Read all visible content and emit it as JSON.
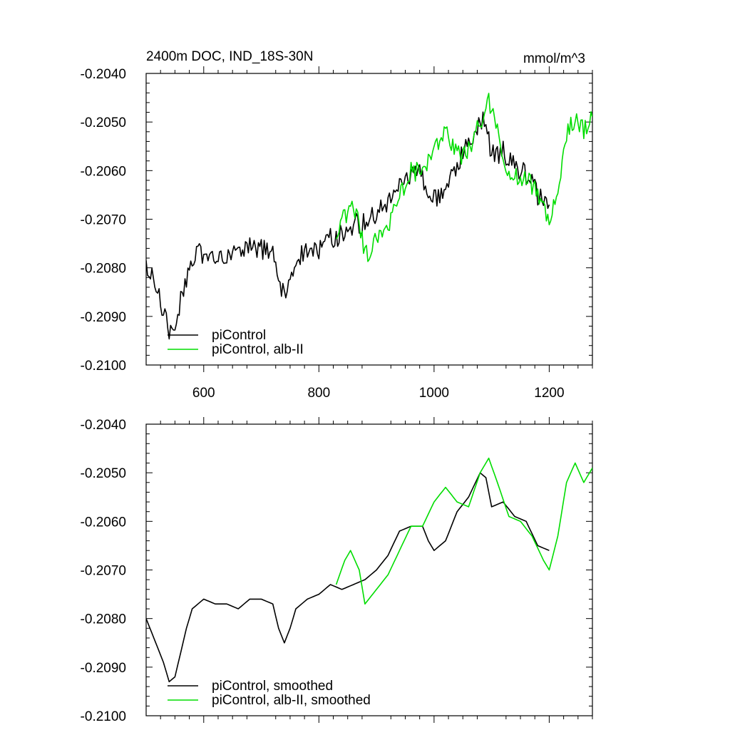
{
  "chart_data": [
    {
      "type": "line",
      "title": "2400m DOC, IND_18S-30N",
      "units": "mmol/m^3",
      "xlim": [
        500,
        1275
      ],
      "ylim": [
        -0.21,
        -0.204
      ],
      "xticks": [
        600,
        800,
        1000,
        1200
      ],
      "xtick_labels": [
        "600",
        "800",
        "1000",
        "1200"
      ],
      "yticks": [
        -0.204,
        -0.205,
        -0.206,
        -0.207,
        -0.208,
        -0.209,
        -0.21
      ],
      "ytick_labels": [
        "-0.2040",
        "-0.2050",
        "-0.2060",
        "-0.2070",
        "-0.2080",
        "-0.2090",
        "-0.2100"
      ],
      "legend_position": "bottom-left",
      "series": [
        {
          "name": "piControl",
          "color": "#000000",
          "points": [
            [
              500,
              -0.2079
            ],
            [
              510,
              -0.2082
            ],
            [
              520,
              -0.2085
            ],
            [
              530,
              -0.2089
            ],
            [
              540,
              -0.2094
            ],
            [
              550,
              -0.2093
            ],
            [
              560,
              -0.2087
            ],
            [
              570,
              -0.2082
            ],
            [
              580,
              -0.2079
            ],
            [
              590,
              -0.2077
            ],
            [
              600,
              -0.2078
            ],
            [
              610,
              -0.2076
            ],
            [
              620,
              -0.2077
            ],
            [
              640,
              -0.2078
            ],
            [
              660,
              -0.2077
            ],
            [
              680,
              -0.2076
            ],
            [
              700,
              -0.2076
            ],
            [
              720,
              -0.2077
            ],
            [
              730,
              -0.2082
            ],
            [
              740,
              -0.2086
            ],
            [
              750,
              -0.2082
            ],
            [
              760,
              -0.2078
            ],
            [
              780,
              -0.2076
            ],
            [
              800,
              -0.2076
            ],
            [
              820,
              -0.2074
            ],
            [
              840,
              -0.2073
            ],
            [
              860,
              -0.2071
            ],
            [
              880,
              -0.2071
            ],
            [
              900,
              -0.2069
            ],
            [
              920,
              -0.2066
            ],
            [
              940,
              -0.2062
            ],
            [
              960,
              -0.2061
            ],
            [
              980,
              -0.2061
            ],
            [
              990,
              -0.2065
            ],
            [
              1000,
              -0.2066
            ],
            [
              1020,
              -0.2065
            ],
            [
              1040,
              -0.2058
            ],
            [
              1060,
              -0.2055
            ],
            [
              1080,
              -0.2049
            ],
            [
              1090,
              -0.205
            ],
            [
              1100,
              -0.2057
            ],
            [
              1120,
              -0.2056
            ],
            [
              1140,
              -0.2059
            ],
            [
              1160,
              -0.2061
            ],
            [
              1180,
              -0.2065
            ],
            [
              1200,
              -0.2067
            ]
          ]
        },
        {
          "name": "piControl, alb-II",
          "color": "#00dd00",
          "points": [
            [
              830,
              -0.2073
            ],
            [
              845,
              -0.2069
            ],
            [
              855,
              -0.2067
            ],
            [
              870,
              -0.2071
            ],
            [
              880,
              -0.2078
            ],
            [
              900,
              -0.2074
            ],
            [
              920,
              -0.2071
            ],
            [
              940,
              -0.2066
            ],
            [
              960,
              -0.206
            ],
            [
              980,
              -0.206
            ],
            [
              1000,
              -0.2055
            ],
            [
              1020,
              -0.2052
            ],
            [
              1040,
              -0.2057
            ],
            [
              1060,
              -0.2056
            ],
            [
              1080,
              -0.205
            ],
            [
              1095,
              -0.2046
            ],
            [
              1110,
              -0.2052
            ],
            [
              1130,
              -0.206
            ],
            [
              1150,
              -0.2061
            ],
            [
              1170,
              -0.2063
            ],
            [
              1190,
              -0.2068
            ],
            [
              1200,
              -0.2071
            ],
            [
              1215,
              -0.2063
            ],
            [
              1230,
              -0.2052
            ],
            [
              1245,
              -0.2049
            ],
            [
              1260,
              -0.2052
            ],
            [
              1275,
              -0.2049
            ]
          ]
        }
      ]
    },
    {
      "type": "line",
      "xlim": [
        500,
        1275
      ],
      "ylim": [
        -0.21,
        -0.204
      ],
      "xticks": [
        600,
        800,
        1000,
        1200
      ],
      "yticks": [
        -0.204,
        -0.205,
        -0.206,
        -0.207,
        -0.208,
        -0.209,
        -0.21
      ],
      "ytick_labels": [
        "-0.2040",
        "-0.2050",
        "-0.2060",
        "-0.2070",
        "-0.2080",
        "-0.2090",
        "-0.2100"
      ],
      "legend_position": "bottom-left",
      "series": [
        {
          "name": "piControl, smoothed",
          "color": "#000000",
          "points": [
            [
              500,
              -0.208
            ],
            [
              510,
              -0.2083
            ],
            [
              520,
              -0.2086
            ],
            [
              530,
              -0.2089
            ],
            [
              540,
              -0.2093
            ],
            [
              550,
              -0.2092
            ],
            [
              560,
              -0.2087
            ],
            [
              570,
              -0.2082
            ],
            [
              580,
              -0.2078
            ],
            [
              600,
              -0.2076
            ],
            [
              620,
              -0.2077
            ],
            [
              640,
              -0.2077
            ],
            [
              660,
              -0.2078
            ],
            [
              680,
              -0.2076
            ],
            [
              700,
              -0.2076
            ],
            [
              720,
              -0.2077
            ],
            [
              730,
              -0.2082
            ],
            [
              740,
              -0.2085
            ],
            [
              750,
              -0.2082
            ],
            [
              760,
              -0.2078
            ],
            [
              780,
              -0.2076
            ],
            [
              800,
              -0.2075
            ],
            [
              820,
              -0.2073
            ],
            [
              840,
              -0.2074
            ],
            [
              860,
              -0.2073
            ],
            [
              880,
              -0.2072
            ],
            [
              900,
              -0.207
            ],
            [
              920,
              -0.2067
            ],
            [
              940,
              -0.2062
            ],
            [
              960,
              -0.2061
            ],
            [
              980,
              -0.2061
            ],
            [
              990,
              -0.2064
            ],
            [
              1000,
              -0.2066
            ],
            [
              1020,
              -0.2064
            ],
            [
              1040,
              -0.2058
            ],
            [
              1060,
              -0.2055
            ],
            [
              1080,
              -0.205
            ],
            [
              1090,
              -0.2051
            ],
            [
              1100,
              -0.2057
            ],
            [
              1120,
              -0.2056
            ],
            [
              1140,
              -0.2059
            ],
            [
              1160,
              -0.206
            ],
            [
              1180,
              -0.2065
            ],
            [
              1200,
              -0.2066
            ]
          ]
        },
        {
          "name": "piControl, alb-II, smoothed",
          "color": "#00dd00",
          "points": [
            [
              830,
              -0.2073
            ],
            [
              845,
              -0.2068
            ],
            [
              855,
              -0.2066
            ],
            [
              870,
              -0.207
            ],
            [
              880,
              -0.2077
            ],
            [
              900,
              -0.2074
            ],
            [
              920,
              -0.2071
            ],
            [
              940,
              -0.2066
            ],
            [
              960,
              -0.2061
            ],
            [
              980,
              -0.2061
            ],
            [
              1000,
              -0.2056
            ],
            [
              1020,
              -0.2053
            ],
            [
              1040,
              -0.2056
            ],
            [
              1060,
              -0.2057
            ],
            [
              1080,
              -0.205
            ],
            [
              1095,
              -0.2047
            ],
            [
              1110,
              -0.2052
            ],
            [
              1130,
              -0.2059
            ],
            [
              1150,
              -0.206
            ],
            [
              1170,
              -0.2063
            ],
            [
              1190,
              -0.2068
            ],
            [
              1200,
              -0.207
            ],
            [
              1215,
              -0.2063
            ],
            [
              1230,
              -0.2052
            ],
            [
              1245,
              -0.2048
            ],
            [
              1260,
              -0.2052
            ],
            [
              1275,
              -0.2049
            ]
          ]
        }
      ]
    }
  ]
}
